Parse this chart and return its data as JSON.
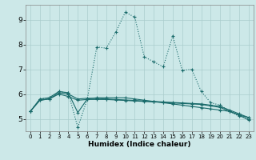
{
  "xlabel": "Humidex (Indice chaleur)",
  "xlim": [
    -0.5,
    23.5
  ],
  "ylim": [
    4.5,
    9.6
  ],
  "yticks": [
    5,
    6,
    7,
    8,
    9
  ],
  "xticks": [
    0,
    1,
    2,
    3,
    4,
    5,
    6,
    7,
    8,
    9,
    10,
    11,
    12,
    13,
    14,
    15,
    16,
    17,
    18,
    19,
    20,
    21,
    22,
    23
  ],
  "bg_color": "#cce8e8",
  "line_color": "#1a6b6b",
  "grid_color": "#aacccc",
  "series_dotted": [
    5.3,
    5.8,
    5.85,
    6.1,
    6.05,
    4.65,
    5.8,
    7.9,
    7.85,
    8.5,
    9.3,
    9.1,
    7.5,
    7.3,
    7.1,
    8.35,
    6.95,
    7.0,
    6.1,
    5.65,
    5.55,
    5.3,
    5.1,
    5.0
  ],
  "series_solid": [
    [
      5.3,
      5.8,
      5.85,
      6.1,
      6.05,
      5.25,
      5.8,
      5.85,
      5.85,
      5.85,
      5.85,
      5.8,
      5.75,
      5.7,
      5.65,
      5.6,
      5.55,
      5.5,
      5.45,
      5.4,
      5.35,
      5.3,
      5.15,
      5.05
    ],
    [
      5.3,
      5.75,
      5.8,
      6.05,
      6.0,
      5.8,
      5.83,
      5.82,
      5.8,
      5.78,
      5.76,
      5.74,
      5.72,
      5.7,
      5.68,
      5.66,
      5.64,
      5.62,
      5.6,
      5.55,
      5.5,
      5.35,
      5.2,
      5.05
    ],
    [
      5.3,
      5.75,
      5.8,
      6.0,
      5.9,
      5.75,
      5.78,
      5.78,
      5.78,
      5.76,
      5.74,
      5.72,
      5.7,
      5.68,
      5.66,
      5.64,
      5.62,
      5.6,
      5.58,
      5.52,
      5.46,
      5.3,
      5.15,
      4.95
    ]
  ]
}
